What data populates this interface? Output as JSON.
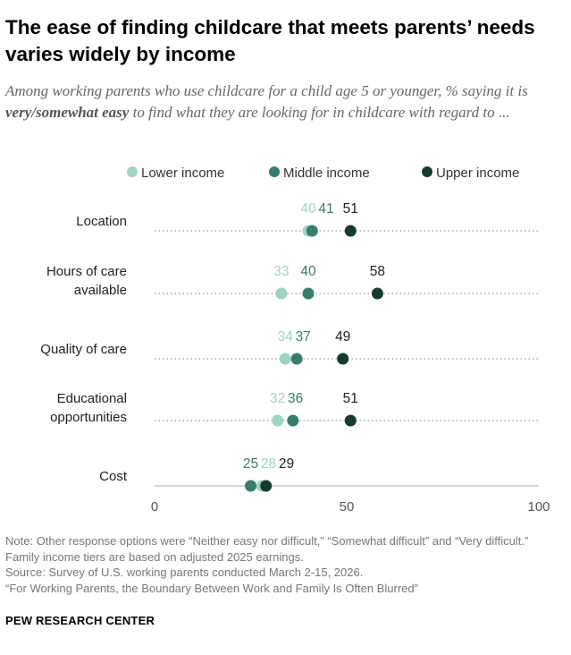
{
  "header": {
    "title": "The ease of finding childcare that meets parents’ needs varies widely by income",
    "subtitle_before": "Among working parents who use childcare for a child age 5 or younger, % saying it is ",
    "subtitle_emphasis": "very/somewhat easy",
    "subtitle_after": " to find what they are looking for in childcare with regard to ..."
  },
  "chart_data": {
    "type": "dot",
    "categories": [
      "Location",
      "Hours of care available",
      "Quality of care",
      "Educational opportunities",
      "Cost"
    ],
    "category_lines": [
      [
        "Location"
      ],
      [
        "Hours of care",
        "available"
      ],
      [
        "Quality of care"
      ],
      [
        "Educational",
        "opportunities"
      ],
      [
        "Cost"
      ]
    ],
    "series": [
      {
        "name": "Lower income",
        "color": "#9fd5c0",
        "values": [
          40,
          33,
          34,
          32,
          28
        ]
      },
      {
        "name": "Middle income",
        "color": "#3a7c6c",
        "values": [
          41,
          40,
          37,
          36,
          25
        ]
      },
      {
        "name": "Upper income",
        "color": "#173a30",
        "values": [
          51,
          58,
          49,
          51,
          29
        ]
      }
    ],
    "xlim": [
      0,
      100
    ],
    "xticks": [
      0,
      50,
      100
    ],
    "legend_position": "top"
  },
  "footer": {
    "note": "Note: Other response options were “Neither easy nor difficult,” “Somewhat difficult” and “Very difficult.” Family income tiers are based on adjusted 2025 earnings.",
    "source": "Source: Survey of U.S. working parents conducted March 2-15, 2026.",
    "report": "“For Working Parents, the Boundary Between Work and Family Is Often Blurred”",
    "brand": "PEW RESEARCH CENTER"
  }
}
